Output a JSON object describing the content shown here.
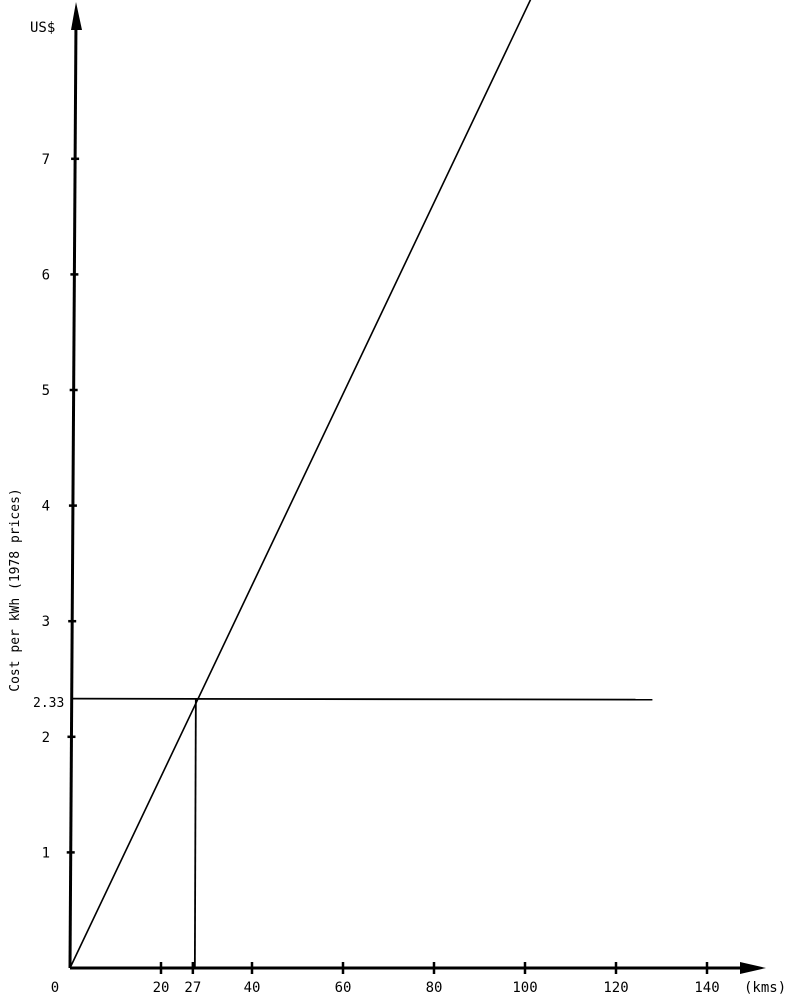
{
  "chart_data": {
    "type": "line",
    "ylabel": "Cost per kWh (1978 prices)",
    "yunit": "US$",
    "xunit": "(kms)",
    "xlim": [
      0,
      150
    ],
    "ylim": [
      0,
      8.2
    ],
    "x_ticks": [
      "0",
      "20",
      "27",
      "40",
      "60",
      "80",
      "100",
      "120",
      "140"
    ],
    "x_tick_values": [
      0,
      20,
      27,
      40,
      60,
      80,
      100,
      120,
      140
    ],
    "y_ticks": [
      "1",
      "2",
      "3",
      "4",
      "5",
      "6",
      "7"
    ],
    "y_tick_values": [
      1,
      2,
      3,
      4,
      5,
      6,
      7
    ],
    "y_marked_label": "2.33",
    "series": [
      {
        "x": [
          0,
          101.5
        ],
        "y": [
          0,
          8.4
        ]
      }
    ],
    "reference_lines": {
      "horizontal": {
        "y": 2.33,
        "x_end": 128
      },
      "vertical": {
        "x": 27,
        "y_end": 2.33
      }
    }
  }
}
